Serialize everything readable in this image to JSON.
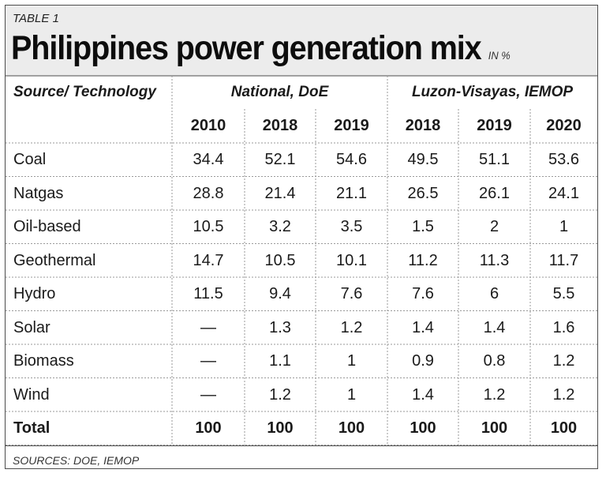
{
  "label": "TABLE 1",
  "title": "Philippines power generation mix",
  "unit": "IN %",
  "sources": "SOURCES: DOE, IEMOP",
  "chart_data": {
    "type": "table",
    "row_header_label": "Source/ Technology",
    "column_groups": [
      {
        "name": "National, DoE",
        "years": [
          "2010",
          "2018",
          "2019"
        ]
      },
      {
        "name": "Luzon-Visayas, IEMOP",
        "years": [
          "2018",
          "2019",
          "2020"
        ]
      }
    ],
    "rows": [
      {
        "source": "Coal",
        "values": [
          "34.4",
          "52.1",
          "54.6",
          "49.5",
          "51.1",
          "53.6"
        ]
      },
      {
        "source": "Natgas",
        "values": [
          "28.8",
          "21.4",
          "21.1",
          "26.5",
          "26.1",
          "24.1"
        ]
      },
      {
        "source": "Oil-based",
        "values": [
          "10.5",
          "3.2",
          "3.5",
          "1.5",
          "2",
          "1"
        ]
      },
      {
        "source": "Geothermal",
        "values": [
          "14.7",
          "10.5",
          "10.1",
          "11.2",
          "11.3",
          "11.7"
        ]
      },
      {
        "source": "Hydro",
        "values": [
          "11.5",
          "9.4",
          "7.6",
          "7.6",
          "6",
          "5.5"
        ]
      },
      {
        "source": "Solar",
        "values": [
          "—",
          "1.3",
          "1.2",
          "1.4",
          "1.4",
          "1.6"
        ]
      },
      {
        "source": "Biomass",
        "values": [
          "—",
          "1.1",
          "1",
          "0.9",
          "0.8",
          "1.2"
        ]
      },
      {
        "source": "Wind",
        "values": [
          "—",
          "1.2",
          "1",
          "1.4",
          "1.2",
          "1.2"
        ]
      }
    ],
    "total": {
      "source": "Total",
      "values": [
        "100",
        "100",
        "100",
        "100",
        "100",
        "100"
      ]
    }
  }
}
